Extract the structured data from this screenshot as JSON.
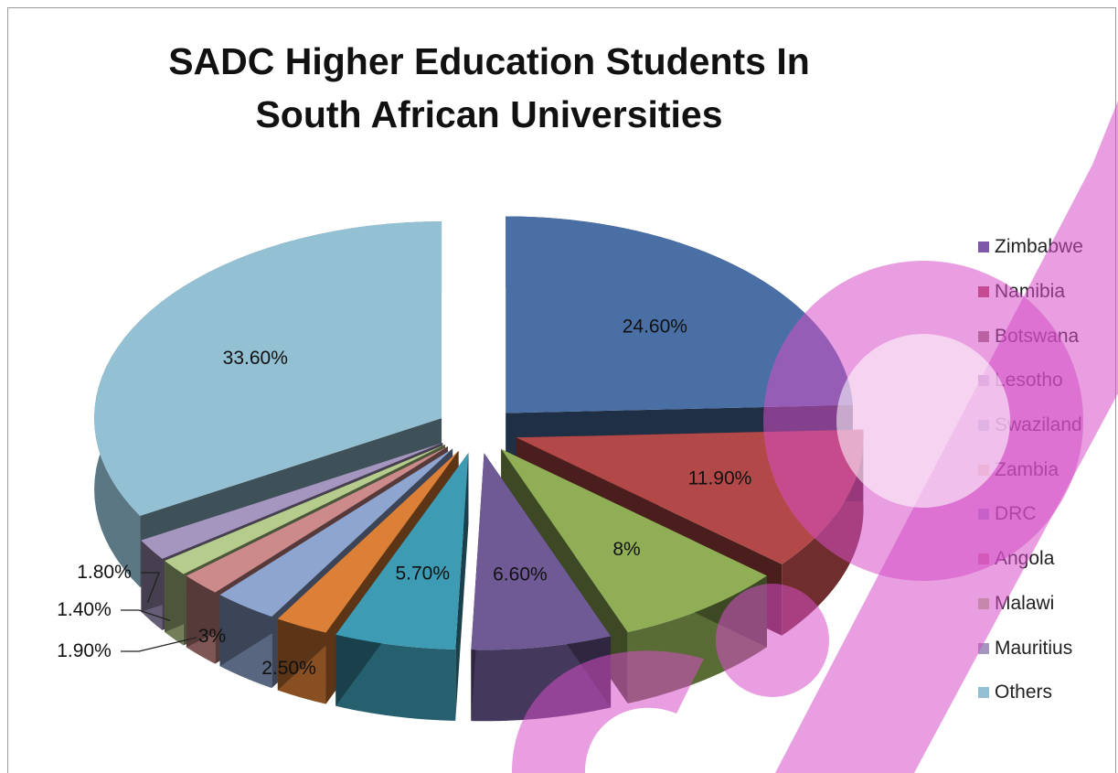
{
  "chart_data": {
    "type": "pie",
    "title": "SADC Higher Education Students In South African Universities",
    "categories": [
      "Zimbabwe",
      "Namibia",
      "Botswana",
      "Lesotho",
      "Swaziland",
      "Zambia",
      "DRC",
      "Angola",
      "Malawi",
      "Mauritius",
      "Others"
    ],
    "values": [
      24.6,
      11.9,
      8.0,
      6.6,
      5.7,
      2.5,
      3.0,
      1.9,
      1.4,
      1.8,
      33.6
    ],
    "data_labels": [
      "24.60%",
      "11.90%",
      "8%",
      "6.60%",
      "5.70%",
      "2.50%",
      "3%",
      "1.90%",
      "1.40%",
      "1.80%",
      "33.60%"
    ],
    "colors": [
      "#4a6fa5",
      "#b34848",
      "#8fae55",
      "#6f5a96",
      "#3d9bb3",
      "#dc7f37",
      "#8ea5cf",
      "#cc8a8a",
      "#b6cc8d",
      "#a496bf",
      "#93c0d3"
    ],
    "legend_colors": [
      "#7d57a8",
      "#b04555",
      "#9a7a7a",
      "#8d4aa6",
      "#5d78b5",
      "#de7f34",
      "#8ea5cf",
      "#cc8a8a",
      "#b6cc8d",
      "#a496bf",
      "#93c0d3"
    ],
    "legend_position": "right",
    "style": "3d-exploded-pie"
  }
}
